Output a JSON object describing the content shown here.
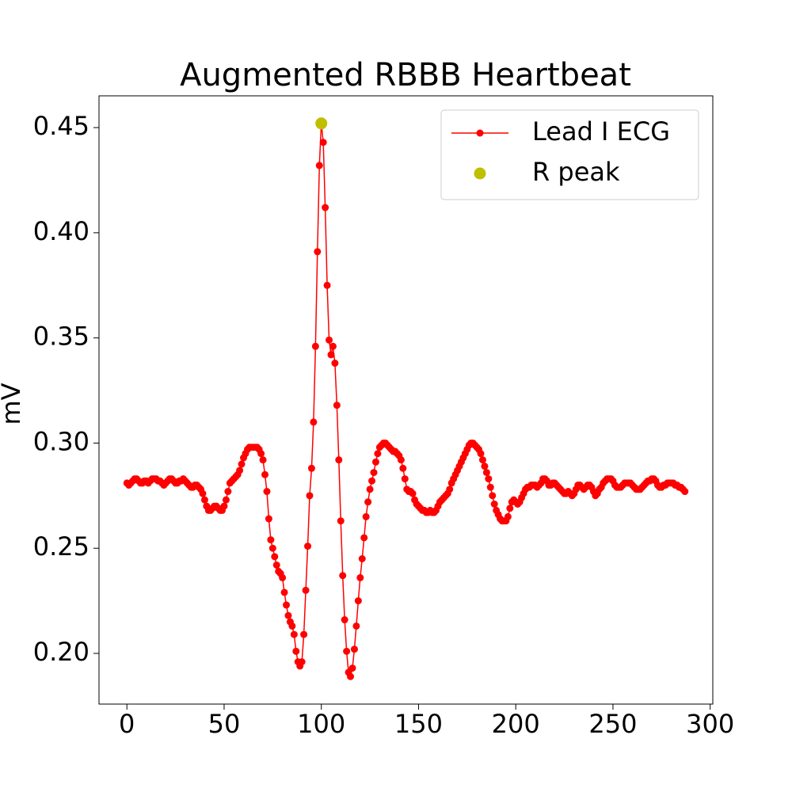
{
  "chart_data": {
    "type": "line",
    "title": "Augmented RBBB Heartbeat",
    "y_label": "mV",
    "xlim": [
      -14.35,
      301.35
    ],
    "xticks": [
      0,
      50,
      100,
      150,
      200,
      250,
      300
    ],
    "ylim": [
      0.1759,
      0.4651
    ],
    "yticks": [
      {
        "value": 0.2,
        "label": "0.20"
      },
      {
        "value": 0.25,
        "label": "0.25"
      },
      {
        "value": 0.3,
        "label": "0.30"
      },
      {
        "value": 0.35,
        "label": "0.35"
      },
      {
        "value": 0.4,
        "label": "0.40"
      },
      {
        "value": 0.45,
        "label": "0.45"
      }
    ],
    "legend": "upper right",
    "series": [
      {
        "name": "Lead I ECG",
        "color": "#ff0000",
        "line": true,
        "marker_size": 4.5,
        "x": [
          0,
          1,
          2,
          3,
          4,
          5,
          6,
          7,
          8,
          9,
          10,
          11,
          12,
          13,
          14,
          15,
          16,
          17,
          18,
          19,
          20,
          21,
          22,
          23,
          24,
          25,
          26,
          27,
          28,
          29,
          30,
          31,
          32,
          33,
          34,
          35,
          36,
          37,
          38,
          39,
          40,
          41,
          42,
          43,
          44,
          45,
          46,
          47,
          48,
          49,
          50,
          51,
          52,
          53,
          54,
          55,
          56,
          57,
          58,
          59,
          60,
          61,
          62,
          63,
          64,
          65,
          66,
          67,
          68,
          69,
          70,
          71,
          72,
          73,
          74,
          75,
          76,
          77,
          78,
          79,
          80,
          81,
          82,
          83,
          84,
          85,
          86,
          87,
          88,
          89,
          90,
          91,
          92,
          93,
          94,
          95,
          96,
          97,
          98,
          99,
          100,
          101,
          102,
          103,
          104,
          105,
          106,
          107,
          108,
          109,
          110,
          111,
          112,
          113,
          114,
          115,
          116,
          117,
          118,
          119,
          120,
          121,
          122,
          123,
          124,
          125,
          126,
          127,
          128,
          129,
          130,
          131,
          132,
          133,
          134,
          135,
          136,
          137,
          138,
          139,
          140,
          141,
          142,
          143,
          144,
          145,
          146,
          147,
          148,
          149,
          150,
          151,
          152,
          153,
          154,
          155,
          156,
          157,
          158,
          159,
          160,
          161,
          162,
          163,
          164,
          165,
          166,
          167,
          168,
          169,
          170,
          171,
          172,
          173,
          174,
          175,
          176,
          177,
          178,
          179,
          180,
          181,
          182,
          183,
          184,
          185,
          186,
          187,
          188,
          189,
          190,
          191,
          192,
          193,
          194,
          195,
          196,
          197,
          198,
          199,
          200,
          201,
          202,
          203,
          204,
          205,
          206,
          207,
          208,
          209,
          210,
          211,
          212,
          213,
          214,
          215,
          216,
          217,
          218,
          219,
          220,
          221,
          222,
          223,
          224,
          225,
          226,
          227,
          228,
          229,
          230,
          231,
          232,
          233,
          234,
          235,
          236,
          237,
          238,
          239,
          240,
          241,
          242,
          243,
          244,
          245,
          246,
          247,
          248,
          249,
          250,
          251,
          252,
          253,
          254,
          255,
          256,
          257,
          258,
          259,
          260,
          261,
          262,
          263,
          264,
          265,
          266,
          267,
          268,
          269,
          270,
          271,
          272,
          273,
          274,
          275,
          276,
          277,
          278,
          279,
          280,
          281,
          282,
          283,
          284,
          285,
          286,
          287
        ],
        "values": [
          0.281,
          0.28,
          0.281,
          0.282,
          0.283,
          0.283,
          0.282,
          0.281,
          0.281,
          0.282,
          0.282,
          0.281,
          0.282,
          0.283,
          0.283,
          0.283,
          0.282,
          0.282,
          0.281,
          0.28,
          0.281,
          0.282,
          0.283,
          0.283,
          0.282,
          0.281,
          0.281,
          0.282,
          0.282,
          0.283,
          0.282,
          0.281,
          0.28,
          0.279,
          0.279,
          0.28,
          0.28,
          0.279,
          0.278,
          0.276,
          0.273,
          0.27,
          0.268,
          0.268,
          0.269,
          0.27,
          0.27,
          0.269,
          0.268,
          0.268,
          0.27,
          0.273,
          0.277,
          0.281,
          0.282,
          0.283,
          0.284,
          0.285,
          0.287,
          0.29,
          0.293,
          0.295,
          0.297,
          0.298,
          0.298,
          0.298,
          0.298,
          0.298,
          0.297,
          0.295,
          0.292,
          0.285,
          0.277,
          0.264,
          0.254,
          0.25,
          0.246,
          0.242,
          0.239,
          0.238,
          0.236,
          0.229,
          0.223,
          0.218,
          0.215,
          0.213,
          0.209,
          0.201,
          0.196,
          0.194,
          0.196,
          0.209,
          0.23,
          0.251,
          0.275,
          0.288,
          0.31,
          0.346,
          0.391,
          0.432,
          0.452,
          0.443,
          0.412,
          0.375,
          0.349,
          0.342,
          0.346,
          0.338,
          0.318,
          0.292,
          0.263,
          0.237,
          0.216,
          0.201,
          0.191,
          0.189,
          0.193,
          0.202,
          0.213,
          0.225,
          0.236,
          0.245,
          0.255,
          0.265,
          0.272,
          0.278,
          0.282,
          0.286,
          0.291,
          0.295,
          0.298,
          0.299,
          0.3,
          0.3,
          0.299,
          0.298,
          0.297,
          0.296,
          0.296,
          0.295,
          0.294,
          0.292,
          0.288,
          0.283,
          0.278,
          0.277,
          0.277,
          0.276,
          0.273,
          0.271,
          0.27,
          0.269,
          0.268,
          0.268,
          0.267,
          0.267,
          0.268,
          0.267,
          0.267,
          0.268,
          0.27,
          0.272,
          0.273,
          0.274,
          0.275,
          0.276,
          0.278,
          0.281,
          0.283,
          0.285,
          0.287,
          0.289,
          0.291,
          0.293,
          0.295,
          0.297,
          0.299,
          0.3,
          0.3,
          0.299,
          0.298,
          0.297,
          0.295,
          0.292,
          0.289,
          0.286,
          0.283,
          0.279,
          0.275,
          0.271,
          0.268,
          0.266,
          0.264,
          0.263,
          0.263,
          0.263,
          0.265,
          0.269,
          0.272,
          0.273,
          0.272,
          0.271,
          0.272,
          0.274,
          0.276,
          0.278,
          0.279,
          0.279,
          0.28,
          0.28,
          0.28,
          0.279,
          0.28,
          0.281,
          0.283,
          0.283,
          0.282,
          0.28,
          0.28,
          0.281,
          0.281,
          0.28,
          0.279,
          0.278,
          0.277,
          0.276,
          0.276,
          0.277,
          0.276,
          0.275,
          0.276,
          0.278,
          0.28,
          0.28,
          0.279,
          0.278,
          0.279,
          0.28,
          0.28,
          0.279,
          0.277,
          0.275,
          0.276,
          0.278,
          0.279,
          0.281,
          0.282,
          0.283,
          0.283,
          0.283,
          0.282,
          0.28,
          0.279,
          0.279,
          0.279,
          0.28,
          0.281,
          0.281,
          0.281,
          0.281,
          0.28,
          0.279,
          0.278,
          0.278,
          0.278,
          0.279,
          0.28,
          0.281,
          0.282,
          0.282,
          0.283,
          0.283,
          0.282,
          0.28,
          0.279,
          0.279,
          0.28,
          0.28,
          0.281,
          0.281,
          0.281,
          0.281,
          0.28,
          0.28,
          0.279,
          0.279,
          0.278,
          0.277
        ]
      },
      {
        "name": "R peak",
        "color": "#bfbf00",
        "line": false,
        "marker_size": 7.5,
        "x": [
          100
        ],
        "values": [
          0.452
        ]
      }
    ]
  }
}
